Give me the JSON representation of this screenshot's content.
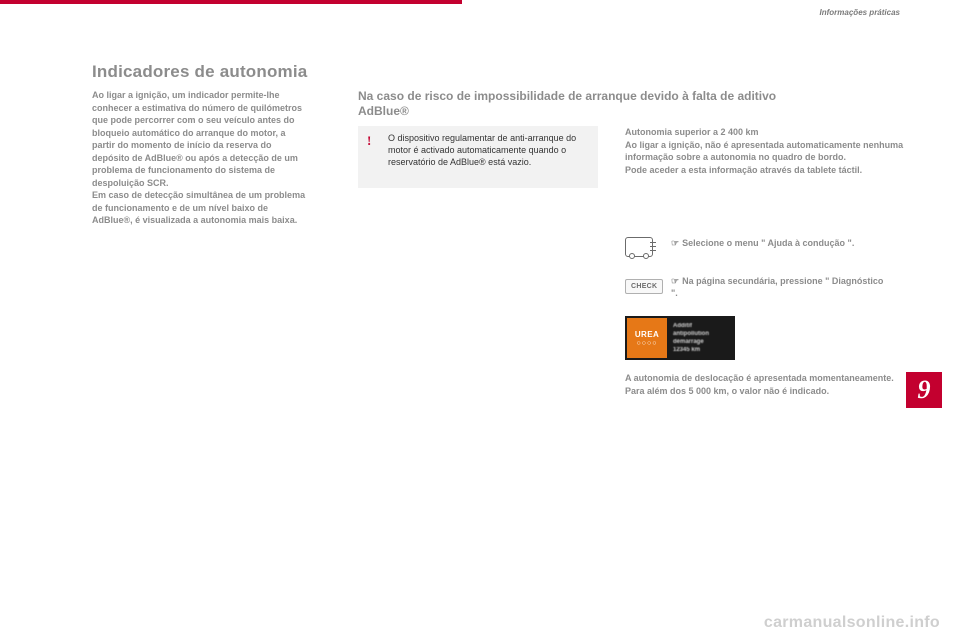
{
  "colors": {
    "accent": "#c3002f",
    "text_grey": "#8c8c8c",
    "text_dark": "#333333",
    "box_bg": "#f2f2f2",
    "urea_orange": "#e67817",
    "urea_bg": "#1a1a1a",
    "watermark": "#cfcfcf"
  },
  "header": {
    "breadcrumb": "Informações práticas"
  },
  "title": "Indicadores de autonomia",
  "left_paragraph": "Ao ligar a ignição, um indicador permite-lhe conhecer a estimativa do número de quilómetros que pode percorrer com o seu veículo antes do bloqueio automático do arranque do motor, a partir do momento de início da reserva do depósito de AdBlue® ou após a detecção de um problema de funcionamento do sistema de despoluição SCR.\nEm caso de detecção simultânea de um problema de funcionamento e de um nível baixo de AdBlue®, é visualizada a autonomia mais baixa.",
  "sub_heading": "Na caso de risco de impossibilidade de arranque devido à falta de aditivo AdBlue®",
  "warning": {
    "bang": "!",
    "text": "O dispositivo regulamentar de anti-arranque do motor é activado automaticamente quando o reservatório de AdBlue® está vazio."
  },
  "right_paragraph": "Autonomia superior a 2 400 km\nAo ligar a ignição, não é apresentada automaticamente nenhuma informação sobre a autonomia no quadro de bordo.\nPode aceder a esta informação através da tablete táctil.",
  "bullets": {
    "row1": "Selecione o menu \" Ajuda à condução \".",
    "row2": "Na página secundária, pressione \" Diagnóstico \"."
  },
  "check_label": "CHECK",
  "urea": {
    "label": "UREA",
    "dots": "○○○○",
    "blur_lines": [
      "Additif",
      "antipollution",
      "démarrage",
      "12345 km"
    ]
  },
  "after_urea": "A autonomia de deslocação é apresentada momentaneamente.\nPara além dos 5 000 km, o valor não é indicado.",
  "section_number": "9",
  "watermark": "carmanualsonline.info"
}
